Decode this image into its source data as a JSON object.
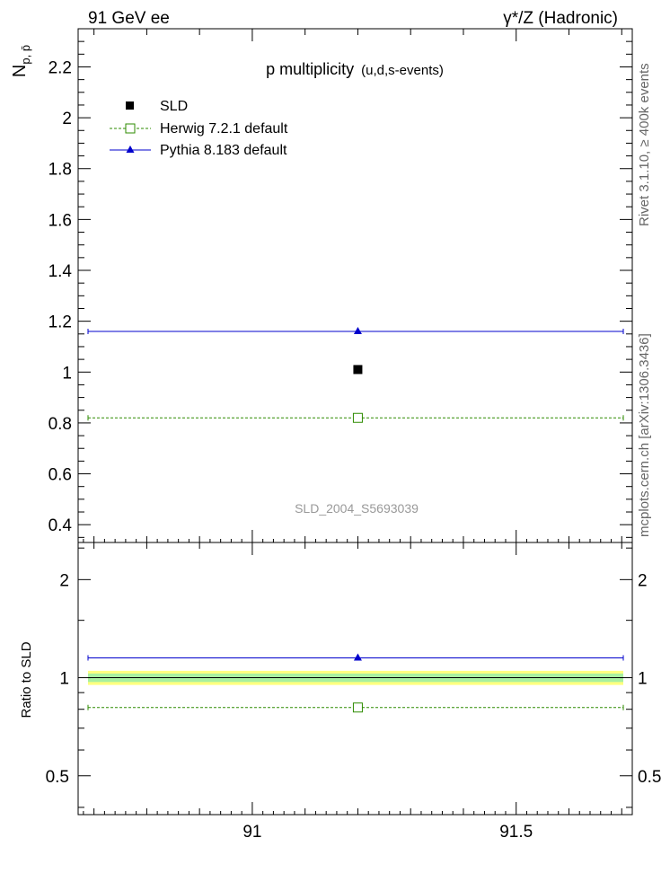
{
  "header": {
    "left": "91 GeV ee",
    "right": "γ*/Z (Hadronic)"
  },
  "side_labels": {
    "rivet": "Rivet 3.1.10, ≥ 400k events",
    "mcplots": "mcplots.cern.ch [arXiv:1306.3436]"
  },
  "chart_data": [
    {
      "type": "scatter",
      "title": "p multiplicity",
      "subtitle": "(u,d,s-events)",
      "ylabel": "N",
      "ylabel_sub": "p, p̄",
      "watermark": "SLD_2004_S5693039",
      "xlim": [
        90.67,
        91.72
      ],
      "ylim": [
        0.33,
        2.35
      ],
      "yticks": [
        0.4,
        0.6,
        0.8,
        1.0,
        1.2,
        1.4,
        1.6,
        1.8,
        2.0,
        2.2
      ],
      "ytick_labels": [
        "0.4",
        "0.6",
        "0.8",
        "1",
        "1.2",
        "1.4",
        "1.6",
        "1.8",
        "2",
        "2.2"
      ],
      "legend": [
        "SLD",
        "Herwig 7.2.1 default",
        "Pythia 8.183 default"
      ],
      "series": [
        {
          "name": "SLD",
          "x": [
            91.2
          ],
          "y": [
            1.01
          ],
          "marker": "square-filled",
          "color": "#000000"
        },
        {
          "name": "Herwig 7.2.1 default",
          "x": [
            91.2
          ],
          "y": [
            0.82
          ],
          "line": "dashed",
          "marker": "square-open",
          "color": "#2e8b00"
        },
        {
          "name": "Pythia 8.183 default",
          "x": [
            91.2
          ],
          "y": [
            1.16
          ],
          "line": "solid",
          "marker": "triangle",
          "color": "#0000cc"
        }
      ]
    },
    {
      "type": "scatter",
      "ylabel": "Ratio to SLD",
      "scale": "log",
      "xlabel": "",
      "xlim": [
        90.67,
        91.72
      ],
      "ylim": [
        0.38,
        2.6
      ],
      "xticks": [
        91,
        91.5
      ],
      "xtick_labels": [
        "91",
        "91.5"
      ],
      "yticks": [
        0.5,
        1,
        2
      ],
      "ytick_labels": [
        "0.5",
        "1",
        "2"
      ],
      "bands": [
        {
          "name": "outer",
          "lo": 0.95,
          "hi": 1.05,
          "color": "#ffff80"
        },
        {
          "name": "inner",
          "lo": 0.97,
          "hi": 1.03,
          "color": "#a8f0a0"
        }
      ],
      "series": [
        {
          "name": "Herwig 7.2.1 default",
          "y": [
            0.81
          ],
          "color": "#2e8b00"
        },
        {
          "name": "Pythia 8.183 default",
          "y": [
            1.15
          ],
          "color": "#0000cc"
        }
      ]
    }
  ]
}
